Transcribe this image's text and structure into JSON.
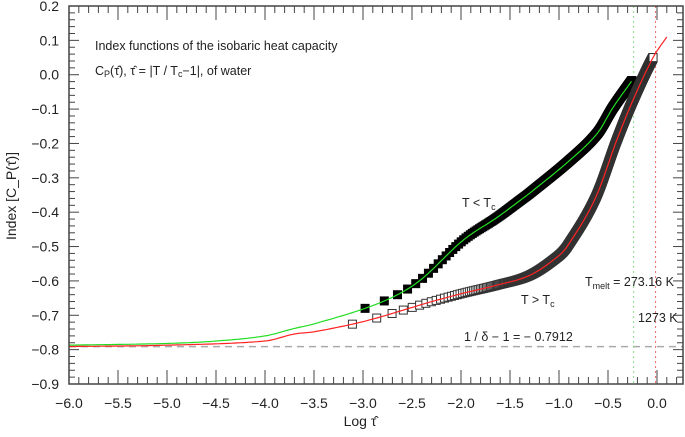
{
  "chart_data": {
    "type": "scatter",
    "title_lines": [
      "Index functions of the isobaric heat capacity",
      "C_P(τ̂), τ̂ = |T / T_c−1|, of water"
    ],
    "xlabel": "Log τ̂",
    "ylabel": "Index [C_P(τ̂)]",
    "xlim": [
      -6.0,
      0.265
    ],
    "ylim": [
      -0.9,
      0.2
    ],
    "x_ticks": [
      "−6.0",
      "−5.5",
      "−5.0",
      "−4.5",
      "−4.0",
      "−3.5",
      "−3.0",
      "−2.5",
      "−2.0",
      "−1.5",
      "−1.0",
      "−0.5",
      "0.0"
    ],
    "x_tick_values": [
      -6.0,
      -5.5,
      -5.0,
      -4.5,
      -4.0,
      -3.5,
      -3.0,
      -2.5,
      -2.0,
      -1.5,
      -1.0,
      -0.5,
      0.0
    ],
    "y_ticks": [
      "0.2",
      "0.1",
      "0.0",
      "−0.1",
      "−0.2",
      "−0.3",
      "−0.4",
      "−0.5",
      "−0.6",
      "−0.7",
      "−0.8",
      "−0.9"
    ],
    "y_tick_values": [
      0.2,
      0.1,
      0.0,
      -0.1,
      -0.2,
      -0.3,
      -0.4,
      -0.5,
      -0.6,
      -0.7,
      -0.8,
      -0.9
    ],
    "grid": false,
    "series": [
      {
        "name": "T < T_c",
        "marker": "filled-square",
        "line_color": "#22dd22",
        "tau_range": [
          0.00105,
          0.556
        ],
        "curve": [
          [
            -6,
            -0.787
          ],
          [
            -5,
            -0.782
          ],
          [
            -4.5,
            -0.775
          ],
          [
            -4,
            -0.76
          ],
          [
            -3.71,
            -0.739
          ],
          [
            -3.5,
            -0.725
          ],
          [
            -2.98,
            -0.68
          ],
          [
            -2.64,
            -0.639
          ],
          [
            -2.39,
            -0.592
          ],
          [
            -1.98,
            -0.482
          ],
          [
            -1.63,
            -0.415
          ],
          [
            -1.37,
            -0.36
          ],
          [
            -1.3,
            -0.345
          ],
          [
            -0.89,
            -0.249
          ],
          [
            -0.61,
            -0.171
          ],
          [
            -0.45,
            -0.096
          ],
          [
            -0.255,
            -0.017
          ]
        ]
      },
      {
        "name": "T > T_c",
        "marker": "open-square",
        "line_color": "#ff2222",
        "tau_range": [
          0.00078,
          0.912
        ],
        "curve": [
          [
            -6,
            -0.791
          ],
          [
            -5,
            -0.787
          ],
          [
            -4,
            -0.775
          ],
          [
            -3.71,
            -0.755
          ],
          [
            -3.5,
            -0.748
          ],
          [
            -3.11,
            -0.726
          ],
          [
            -2.86,
            -0.708
          ],
          [
            -2.59,
            -0.685
          ],
          [
            -2.32,
            -0.662
          ],
          [
            -1.98,
            -0.636
          ],
          [
            -1.63,
            -0.612
          ],
          [
            -1.3,
            -0.584
          ],
          [
            -1.02,
            -0.531
          ],
          [
            -0.91,
            -0.497
          ],
          [
            -0.63,
            -0.36
          ],
          [
            -0.41,
            -0.19
          ],
          [
            -0.245,
            -0.074
          ],
          [
            -0.04,
            0.05
          ],
          [
            0.11,
            0.114
          ]
        ]
      }
    ],
    "reference_lines": {
      "horizontal": {
        "y": -0.7912,
        "label": "1 / δ − 1 = − 0.7912",
        "color": "#aaaaaa"
      },
      "vertical": [
        {
          "x": -0.238,
          "label": "T_melt = 273.16 K",
          "color": "#88dd88"
        },
        {
          "x": -0.0145,
          "label": "1273 K",
          "color": "#ee6666"
        }
      ]
    },
    "annotations": {
      "below_tc": "T < T_c",
      "above_tc": "T > T_c"
    }
  }
}
